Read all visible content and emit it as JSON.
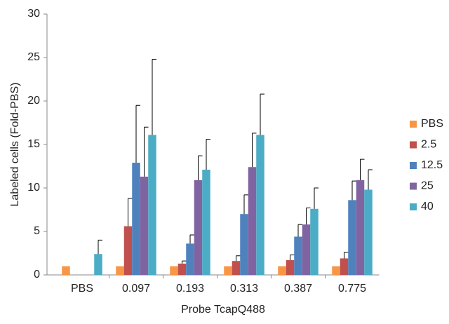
{
  "chart_data": {
    "type": "bar",
    "x_label": "Probe TcapQ488",
    "y_label": "Labeled cells (Fold-PBS)",
    "categories": [
      "PBS",
      "0.097",
      "0.193",
      "0.313",
      "0.387",
      "0.775"
    ],
    "series": [
      {
        "name": "PBS",
        "color": "#f79646",
        "values": [
          1,
          1,
          1,
          1,
          1,
          1
        ]
      },
      {
        "name": "2.5",
        "color": "#c0504d",
        "values": [
          null,
          5.6,
          1.3,
          1.6,
          1.7,
          1.9
        ],
        "errors": [
          null,
          3.2,
          0.3,
          0.6,
          0.6,
          0.7
        ]
      },
      {
        "name": "12.5",
        "color": "#4f81bd",
        "values": [
          null,
          12.9,
          3.6,
          7.0,
          4.4,
          8.6
        ],
        "errors": [
          null,
          6.6,
          1.0,
          2.2,
          1.4,
          2.2
        ]
      },
      {
        "name": "25",
        "color": "#8064a2",
        "values": [
          null,
          11.3,
          10.9,
          12.4,
          5.8,
          10.9
        ],
        "errors": [
          null,
          5.7,
          2.8,
          3.9,
          1.9,
          2.4
        ]
      },
      {
        "name": "40",
        "color": "#4bacc6",
        "values": [
          2.4,
          16.1,
          12.1,
          16.1,
          7.6,
          9.8
        ],
        "errors": [
          1.6,
          8.7,
          3.5,
          4.7,
          2.4,
          2.3
        ]
      }
    ],
    "ylim": [
      0,
      30
    ],
    "yticks": [
      0,
      5,
      10,
      15,
      20,
      25,
      30
    ],
    "legend": "right"
  }
}
